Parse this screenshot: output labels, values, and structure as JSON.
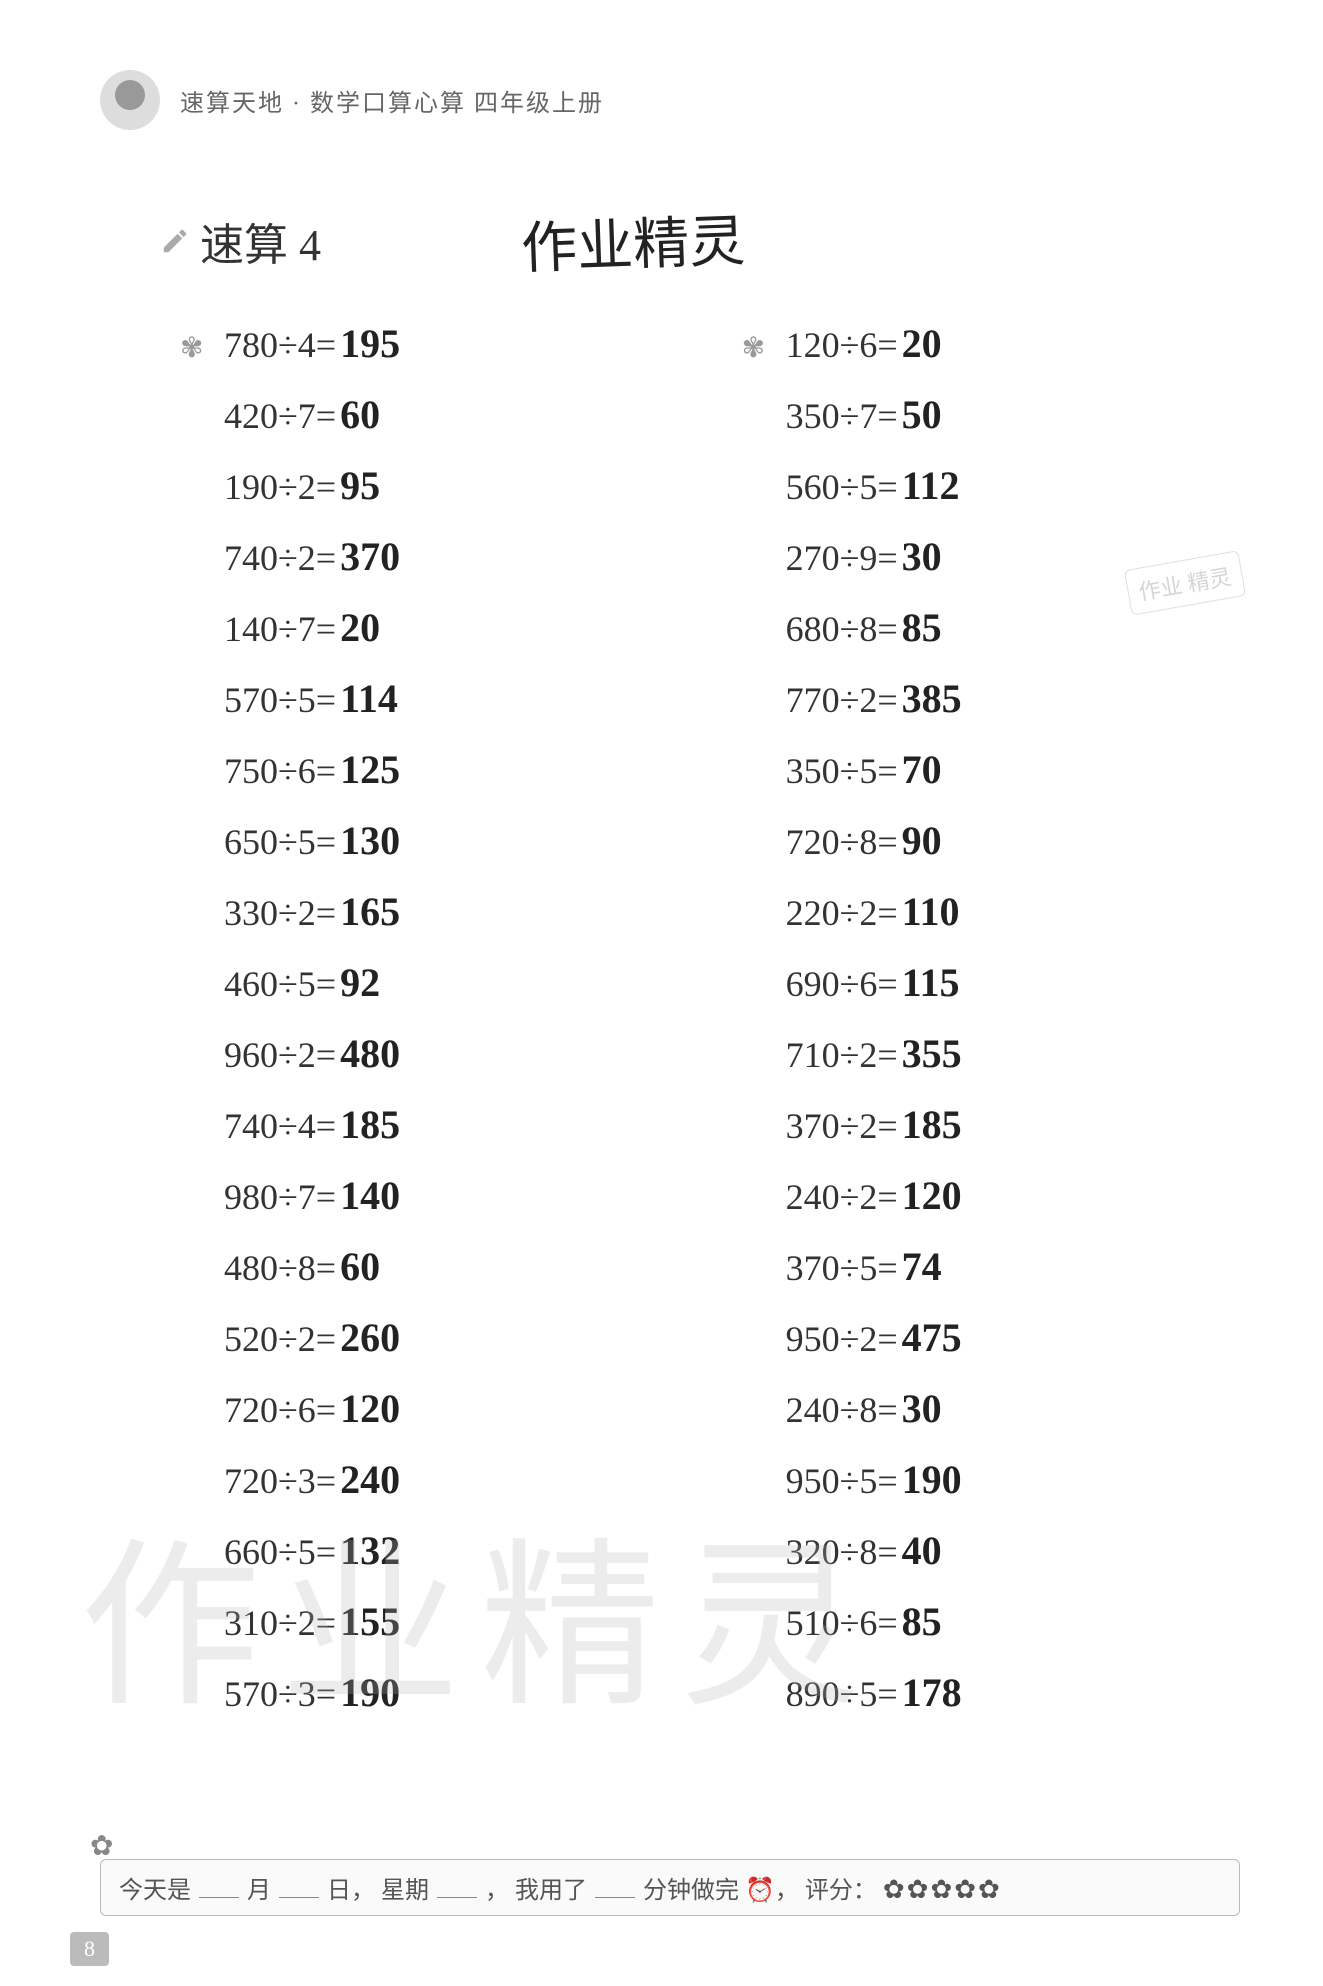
{
  "header": {
    "series_text": "速算天地 · 数学口算心算  四年级上册"
  },
  "section": {
    "title": "速算 4",
    "watermark_title": "作业精灵"
  },
  "problems": {
    "left": [
      {
        "expr": "780÷4=",
        "ans": "195",
        "decorated": true
      },
      {
        "expr": "420÷7=",
        "ans": "60"
      },
      {
        "expr": "190÷2=",
        "ans": "95"
      },
      {
        "expr": "740÷2=",
        "ans": "370"
      },
      {
        "expr": "140÷7=",
        "ans": "20"
      },
      {
        "expr": "570÷5=",
        "ans": "114"
      },
      {
        "expr": "750÷6=",
        "ans": "125"
      },
      {
        "expr": "650÷5=",
        "ans": "130"
      },
      {
        "expr": "330÷2=",
        "ans": "165"
      },
      {
        "expr": "460÷5=",
        "ans": "92"
      },
      {
        "expr": "960÷2=",
        "ans": "480"
      },
      {
        "expr": "740÷4=",
        "ans": "185"
      },
      {
        "expr": "980÷7=",
        "ans": "140"
      },
      {
        "expr": "480÷8=",
        "ans": "60"
      },
      {
        "expr": "520÷2=",
        "ans": "260"
      },
      {
        "expr": "720÷6=",
        "ans": "120"
      },
      {
        "expr": "720÷3=",
        "ans": "240"
      },
      {
        "expr": "660÷5=",
        "ans": "132"
      },
      {
        "expr": "310÷2=",
        "ans": "155"
      },
      {
        "expr": "570÷3=",
        "ans": "190"
      }
    ],
    "right": [
      {
        "expr": "120÷6=",
        "ans": "20",
        "decorated": true
      },
      {
        "expr": "350÷7=",
        "ans": "50"
      },
      {
        "expr": "560÷5=",
        "ans": "112"
      },
      {
        "expr": "270÷9=",
        "ans": "30"
      },
      {
        "expr": "680÷8=",
        "ans": "85"
      },
      {
        "expr": "770÷2=",
        "ans": "385"
      },
      {
        "expr": "350÷5=",
        "ans": "70"
      },
      {
        "expr": "720÷8=",
        "ans": "90"
      },
      {
        "expr": "220÷2=",
        "ans": "110"
      },
      {
        "expr": "690÷6=",
        "ans": "115"
      },
      {
        "expr": "710÷2=",
        "ans": "355"
      },
      {
        "expr": "370÷2=",
        "ans": "185"
      },
      {
        "expr": "240÷2=",
        "ans": "120"
      },
      {
        "expr": "370÷5=",
        "ans": "74"
      },
      {
        "expr": "950÷2=",
        "ans": "475"
      },
      {
        "expr": "240÷8=",
        "ans": "30"
      },
      {
        "expr": "950÷5=",
        "ans": "190"
      },
      {
        "expr": "320÷8=",
        "ans": "40"
      },
      {
        "expr": "510÷6=",
        "ans": "85"
      },
      {
        "expr": "890÷5=",
        "ans": "178"
      }
    ]
  },
  "big_watermark": "作业精灵",
  "stamp_watermark": "作业 精灵",
  "footer": {
    "prefix": "今天是",
    "month_label": "月",
    "day_label": "日，",
    "weekday_prefix": "星期",
    "weekday_suffix": "，",
    "used_prefix": "我用了",
    "minutes_label": "分钟做完 ⏰，",
    "score_label": "评分：",
    "stars": "✿✿✿✿✿"
  },
  "page_number": "8",
  "style": {
    "body_bg": "#ffffff",
    "text_color": "#333333",
    "answer_color": "#222222",
    "header_color": "#666666",
    "watermark_color": "rgba(180,180,180,0.25)",
    "expression_fontsize": 36,
    "answer_fontsize": 40,
    "section_title_fontsize": 44,
    "watermark_title_fontsize": 56,
    "big_watermark_fontsize": 180,
    "line_spacing": 24
  }
}
